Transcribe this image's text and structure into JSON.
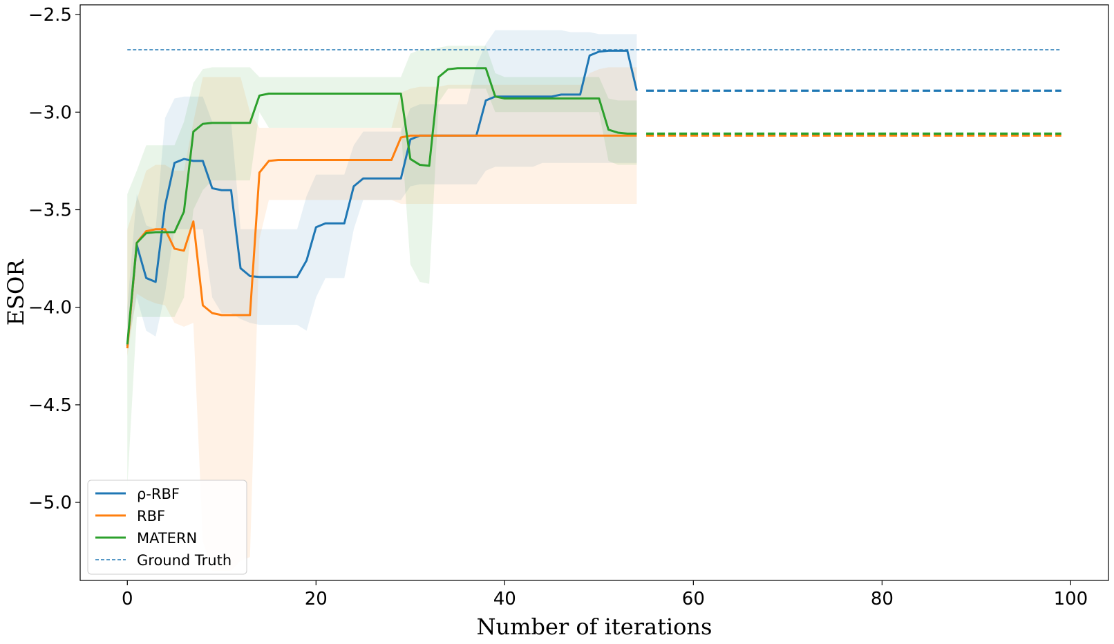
{
  "chart_data": {
    "type": "line",
    "title": "",
    "xlabel": "Number of iterations",
    "ylabel": "ESOR",
    "xlim": [
      -5,
      104
    ],
    "ylim": [
      -5.4,
      -2.45
    ],
    "x_ticks": [
      0,
      20,
      40,
      60,
      80,
      100
    ],
    "x_tick_labels": [
      "0",
      "20",
      "40",
      "60",
      "80",
      "100"
    ],
    "y_ticks": [
      -5.0,
      -4.5,
      -4.0,
      -3.5,
      -3.0,
      -2.5
    ],
    "y_tick_labels": [
      "−5.0",
      "−4.5",
      "−4.0",
      "−3.5",
      "−3.0",
      "−2.5"
    ],
    "grid": false,
    "legend_position": "lower-left",
    "ground_truth": {
      "name": "Ground Truth",
      "value": -2.68,
      "x_range": [
        0,
        99
      ],
      "color": "#1f77b4"
    },
    "series": [
      {
        "name": "ρ-RBF",
        "color": "#1f77b4",
        "x": [
          0,
          1,
          2,
          3,
          4,
          5,
          6,
          7,
          8,
          9,
          10,
          11,
          12,
          13,
          14,
          15,
          16,
          17,
          18,
          19,
          20,
          21,
          22,
          23,
          24,
          25,
          26,
          27,
          28,
          29,
          30,
          31,
          32,
          33,
          34,
          35,
          36,
          37,
          38,
          39,
          40,
          41,
          42,
          43,
          44,
          45,
          46,
          47,
          48,
          49,
          50,
          51,
          52,
          53,
          54
        ],
        "mean": [
          -4.2,
          -3.68,
          -3.85,
          -3.87,
          -3.48,
          -3.26,
          -3.24,
          -3.25,
          -3.25,
          -3.39,
          -3.4,
          -3.4,
          -3.8,
          -3.84,
          -3.845,
          -3.845,
          -3.845,
          -3.845,
          -3.845,
          -3.76,
          -3.59,
          -3.57,
          -3.57,
          -3.57,
          -3.38,
          -3.34,
          -3.34,
          -3.34,
          -3.34,
          -3.34,
          -3.14,
          -3.12,
          -3.12,
          -3.12,
          -3.12,
          -3.12,
          -3.12,
          -3.12,
          -2.94,
          -2.92,
          -2.92,
          -2.92,
          -2.92,
          -2.92,
          -2.92,
          -2.92,
          -2.91,
          -2.91,
          -2.91,
          -2.71,
          -2.69,
          -2.685,
          -2.685,
          -2.685,
          -2.89
        ],
        "lower": [
          -4.21,
          -3.95,
          -4.12,
          -4.15,
          -3.93,
          -3.6,
          -3.6,
          -3.6,
          -3.6,
          -3.95,
          -4.03,
          -4.03,
          -4.06,
          -4.08,
          -4.09,
          -4.09,
          -4.09,
          -4.09,
          -4.09,
          -4.12,
          -3.95,
          -3.85,
          -3.85,
          -3.85,
          -3.6,
          -3.45,
          -3.45,
          -3.45,
          -3.45,
          -3.45,
          -3.38,
          -3.37,
          -3.37,
          -3.37,
          -3.37,
          -3.37,
          -3.37,
          -3.37,
          -3.3,
          -3.28,
          -3.28,
          -3.28,
          -3.28,
          -3.28,
          -3.26,
          -3.26,
          -3.26,
          -3.26,
          -3.26,
          -3.26,
          -3.26,
          -3.26,
          -3.26,
          -3.26,
          -3.26
        ],
        "upper": [
          -4.0,
          -3.42,
          -3.58,
          -3.6,
          -3.03,
          -2.93,
          -2.92,
          -2.92,
          -2.92,
          -3.05,
          -3.05,
          -3.05,
          -3.6,
          -3.6,
          -3.6,
          -3.6,
          -3.6,
          -3.6,
          -3.6,
          -3.43,
          -3.32,
          -3.32,
          -3.32,
          -3.32,
          -3.17,
          -3.1,
          -3.1,
          -3.1,
          -3.1,
          -3.1,
          -2.98,
          -2.96,
          -2.96,
          -2.96,
          -2.96,
          -2.96,
          -2.96,
          -2.76,
          -2.65,
          -2.58,
          -2.58,
          -2.58,
          -2.58,
          -2.58,
          -2.58,
          -2.58,
          -2.58,
          -2.59,
          -2.59,
          -2.59,
          -2.6,
          -2.6,
          -2.6,
          -2.6,
          -2.6
        ]
      },
      {
        "name": "RBF",
        "color": "#ff7f0e",
        "x": [
          0,
          1,
          2,
          3,
          4,
          5,
          6,
          7,
          8,
          9,
          10,
          11,
          12,
          13,
          14,
          15,
          16,
          17,
          18,
          19,
          20,
          21,
          22,
          23,
          24,
          25,
          26,
          27,
          28,
          29,
          30,
          31,
          32,
          33,
          34,
          35,
          36,
          37,
          38,
          39,
          40,
          41,
          42,
          43,
          44,
          45,
          46,
          47,
          48,
          49,
          50,
          51,
          52,
          53,
          54
        ],
        "mean": [
          -4.21,
          -3.67,
          -3.61,
          -3.6,
          -3.6,
          -3.7,
          -3.71,
          -3.56,
          -3.99,
          -4.03,
          -4.04,
          -4.04,
          -4.04,
          -4.04,
          -3.31,
          -3.25,
          -3.245,
          -3.245,
          -3.245,
          -3.245,
          -3.245,
          -3.245,
          -3.245,
          -3.245,
          -3.245,
          -3.245,
          -3.245,
          -3.245,
          -3.245,
          -3.13,
          -3.12,
          -3.12,
          -3.12,
          -3.12,
          -3.12,
          -3.12,
          -3.12,
          -3.12,
          -3.12,
          -3.12,
          -3.12,
          -3.12,
          -3.12,
          -3.12,
          -3.12,
          -3.12,
          -3.12,
          -3.12,
          -3.12,
          -3.12,
          -3.12,
          -3.12,
          -3.12,
          -3.12,
          -3.12
        ],
        "lower": [
          -4.25,
          -3.93,
          -3.96,
          -3.98,
          -3.99,
          -4.08,
          -4.1,
          -4.08,
          -5.2,
          -5.35,
          -5.35,
          -5.35,
          -5.3,
          -5.28,
          -3.65,
          -3.45,
          -3.45,
          -3.45,
          -3.45,
          -3.45,
          -3.45,
          -3.45,
          -3.45,
          -3.45,
          -3.45,
          -3.45,
          -3.45,
          -3.45,
          -3.45,
          -3.47,
          -3.47,
          -3.47,
          -3.47,
          -3.47,
          -3.47,
          -3.47,
          -3.47,
          -3.47,
          -3.47,
          -3.47,
          -3.47,
          -3.47,
          -3.47,
          -3.47,
          -3.47,
          -3.47,
          -3.47,
          -3.47,
          -3.47,
          -3.47,
          -3.47,
          -3.47,
          -3.47,
          -3.47,
          -3.47
        ],
        "upper": [
          -3.6,
          -3.45,
          -3.3,
          -3.27,
          -3.27,
          -3.3,
          -3.3,
          -3.05,
          -2.82,
          -2.82,
          -2.82,
          -2.82,
          -2.82,
          -3.0,
          -3.08,
          -3.08,
          -3.08,
          -3.08,
          -3.08,
          -3.08,
          -3.08,
          -3.08,
          -3.08,
          -3.08,
          -3.08,
          -3.08,
          -3.08,
          -3.08,
          -3.08,
          -2.9,
          -2.88,
          -2.87,
          -2.87,
          -2.87,
          -2.86,
          -2.86,
          -2.86,
          -2.86,
          -2.86,
          -2.86,
          -2.86,
          -2.86,
          -2.86,
          -2.86,
          -2.86,
          -2.86,
          -2.86,
          -2.86,
          -2.86,
          -2.8,
          -2.78,
          -2.77,
          -2.77,
          -2.77,
          -2.77
        ]
      },
      {
        "name": "MATERN",
        "color": "#2ca02c",
        "x": [
          0,
          1,
          2,
          3,
          4,
          5,
          6,
          7,
          8,
          9,
          10,
          11,
          12,
          13,
          14,
          15,
          16,
          17,
          18,
          19,
          20,
          21,
          22,
          23,
          24,
          25,
          26,
          27,
          28,
          29,
          30,
          31,
          32,
          33,
          34,
          35,
          36,
          37,
          38,
          39,
          40,
          41,
          42,
          43,
          44,
          45,
          46,
          47,
          48,
          49,
          50,
          51,
          52,
          53,
          54
        ],
        "mean": [
          -4.19,
          -3.67,
          -3.62,
          -3.615,
          -3.615,
          -3.615,
          -3.51,
          -3.1,
          -3.06,
          -3.055,
          -3.055,
          -3.055,
          -3.055,
          -3.055,
          -2.915,
          -2.905,
          -2.905,
          -2.905,
          -2.905,
          -2.905,
          -2.905,
          -2.905,
          -2.905,
          -2.905,
          -2.905,
          -2.905,
          -2.905,
          -2.905,
          -2.905,
          -2.905,
          -3.24,
          -3.27,
          -3.275,
          -2.82,
          -2.78,
          -2.775,
          -2.775,
          -2.775,
          -2.775,
          -2.92,
          -2.93,
          -2.93,
          -2.93,
          -2.93,
          -2.93,
          -2.93,
          -2.93,
          -2.93,
          -2.93,
          -2.93,
          -2.93,
          -3.09,
          -3.105,
          -3.11,
          -3.11
        ],
        "lower": [
          -4.92,
          -4.05,
          -4.05,
          -4.05,
          -4.05,
          -4.05,
          -3.95,
          -3.5,
          -3.4,
          -3.35,
          -3.35,
          -3.35,
          -3.35,
          -3.35,
          -3.0,
          -3.08,
          -3.08,
          -3.08,
          -3.08,
          -3.08,
          -3.08,
          -3.08,
          -3.08,
          -3.08,
          -3.08,
          -3.08,
          -3.08,
          -3.08,
          -3.08,
          -3.08,
          -3.78,
          -3.87,
          -3.88,
          -2.95,
          -2.88,
          -2.88,
          -2.88,
          -2.88,
          -2.88,
          -3.0,
          -3.0,
          -3.0,
          -3.0,
          -3.0,
          -3.0,
          -3.0,
          -3.0,
          -3.0,
          -3.0,
          -3.0,
          -3.0,
          -3.25,
          -3.27,
          -3.27,
          -3.27
        ],
        "upper": [
          -3.42,
          -3.3,
          -3.17,
          -3.17,
          -3.17,
          -3.17,
          -3.05,
          -2.85,
          -2.78,
          -2.77,
          -2.77,
          -2.77,
          -2.77,
          -2.77,
          -2.82,
          -2.82,
          -2.82,
          -2.82,
          -2.82,
          -2.82,
          -2.82,
          -2.82,
          -2.82,
          -2.82,
          -2.82,
          -2.82,
          -2.82,
          -2.82,
          -2.82,
          -2.82,
          -2.7,
          -2.68,
          -2.68,
          -2.67,
          -2.66,
          -2.66,
          -2.66,
          -2.66,
          -2.66,
          -2.8,
          -2.82,
          -2.82,
          -2.82,
          -2.82,
          -2.82,
          -2.82,
          -2.82,
          -2.82,
          -2.82,
          -2.82,
          -2.82,
          -2.93,
          -2.94,
          -2.94,
          -2.94
        ]
      }
    ],
    "final_estimates": [
      {
        "name": "ρ-RBF",
        "value": -2.89,
        "x_range": [
          55,
          99
        ],
        "color": "#1f77b4"
      },
      {
        "name": "RBF",
        "value": -3.12,
        "x_range": [
          55,
          99
        ],
        "color": "#ff7f0e"
      },
      {
        "name": "MATERN",
        "value": -3.11,
        "x_range": [
          55,
          99
        ],
        "color": "#2ca02c"
      }
    ]
  }
}
